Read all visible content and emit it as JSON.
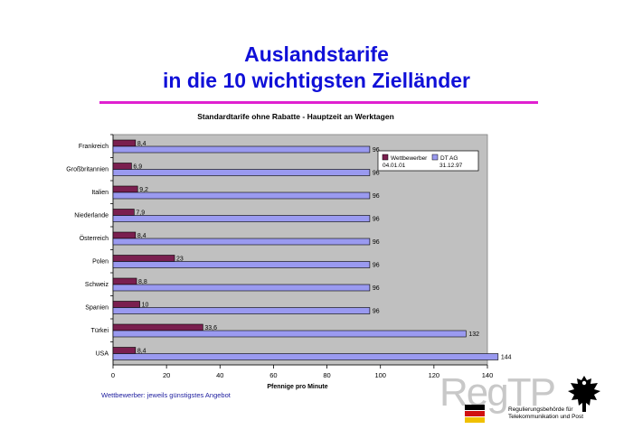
{
  "header": {
    "title_line1": "Auslandstarife",
    "title_line2": "in die 10 wichtigsten Zielländer"
  },
  "chart_data": {
    "type": "bar",
    "orientation": "horizontal",
    "title": "Standardtarife ohne Rabatte - Hauptzeit an Werktagen",
    "xlabel": "Pfennige pro Minute",
    "ylabel": "",
    "xlim": [
      0,
      140
    ],
    "xticks": [
      0,
      20,
      40,
      60,
      80,
      100,
      120,
      140
    ],
    "categories": [
      "Frankreich",
      "Großbritannien",
      "Italien",
      "Niederlande",
      "Österreich",
      "Polen",
      "Schweiz",
      "Spanien",
      "Türkei",
      "USA"
    ],
    "value_labels_wettbewerber": [
      "8,4",
      "6,9",
      "9,2",
      "7,9",
      "8,4",
      "23",
      "8,8",
      "10",
      "33,6",
      "8,4"
    ],
    "value_labels_dtag": [
      "96",
      "96",
      "96",
      "96",
      "96",
      "96",
      "96",
      "96",
      "132",
      "144"
    ],
    "series": [
      {
        "name": "Wettbewerber",
        "legend_date": "04.01.01",
        "color": "#7a1f4f",
        "values": [
          8.4,
          6.9,
          9.2,
          7.9,
          8.4,
          23,
          8.8,
          10,
          33.6,
          8.4
        ]
      },
      {
        "name": "DT AG",
        "legend_date": "31.12.97",
        "color": "#9a9af0",
        "values": [
          96,
          96,
          96,
          96,
          96,
          96,
          96,
          96,
          132,
          144
        ]
      }
    ],
    "legend_position": "top-right",
    "plot_background": "#c0c0c0",
    "grid": false
  },
  "footnote": "Wettbewerber: jeweils günstigstes Angebot",
  "logo": {
    "wordmark": "RegTP",
    "authority_line1": "Regulierungsbehörde für",
    "authority_line2": "Telekommunikation und Post"
  }
}
